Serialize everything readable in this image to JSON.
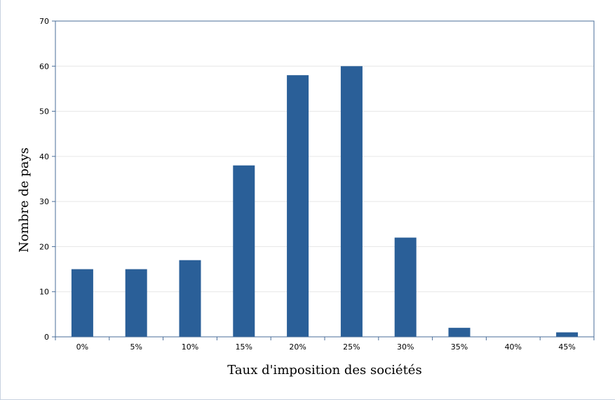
{
  "chart_data": {
    "type": "bar",
    "title": "",
    "xlabel": "Taux d'imposition des sociétés",
    "ylabel": "Nombre de pays",
    "categories": [
      "0%",
      "5%",
      "10%",
      "15%",
      "20%",
      "25%",
      "30%",
      "35%",
      "40%",
      "45%"
    ],
    "values": [
      15,
      15,
      17,
      38,
      58,
      60,
      22,
      2,
      0,
      1
    ],
    "ylim": [
      0,
      70
    ],
    "yticks": [
      0,
      10,
      20,
      30,
      40,
      50,
      60,
      70
    ],
    "grid": true,
    "legend": "none",
    "colors": {
      "bar": "#2a5f98",
      "axis": "#4a6e99",
      "grid": "#e6e6e6"
    }
  }
}
